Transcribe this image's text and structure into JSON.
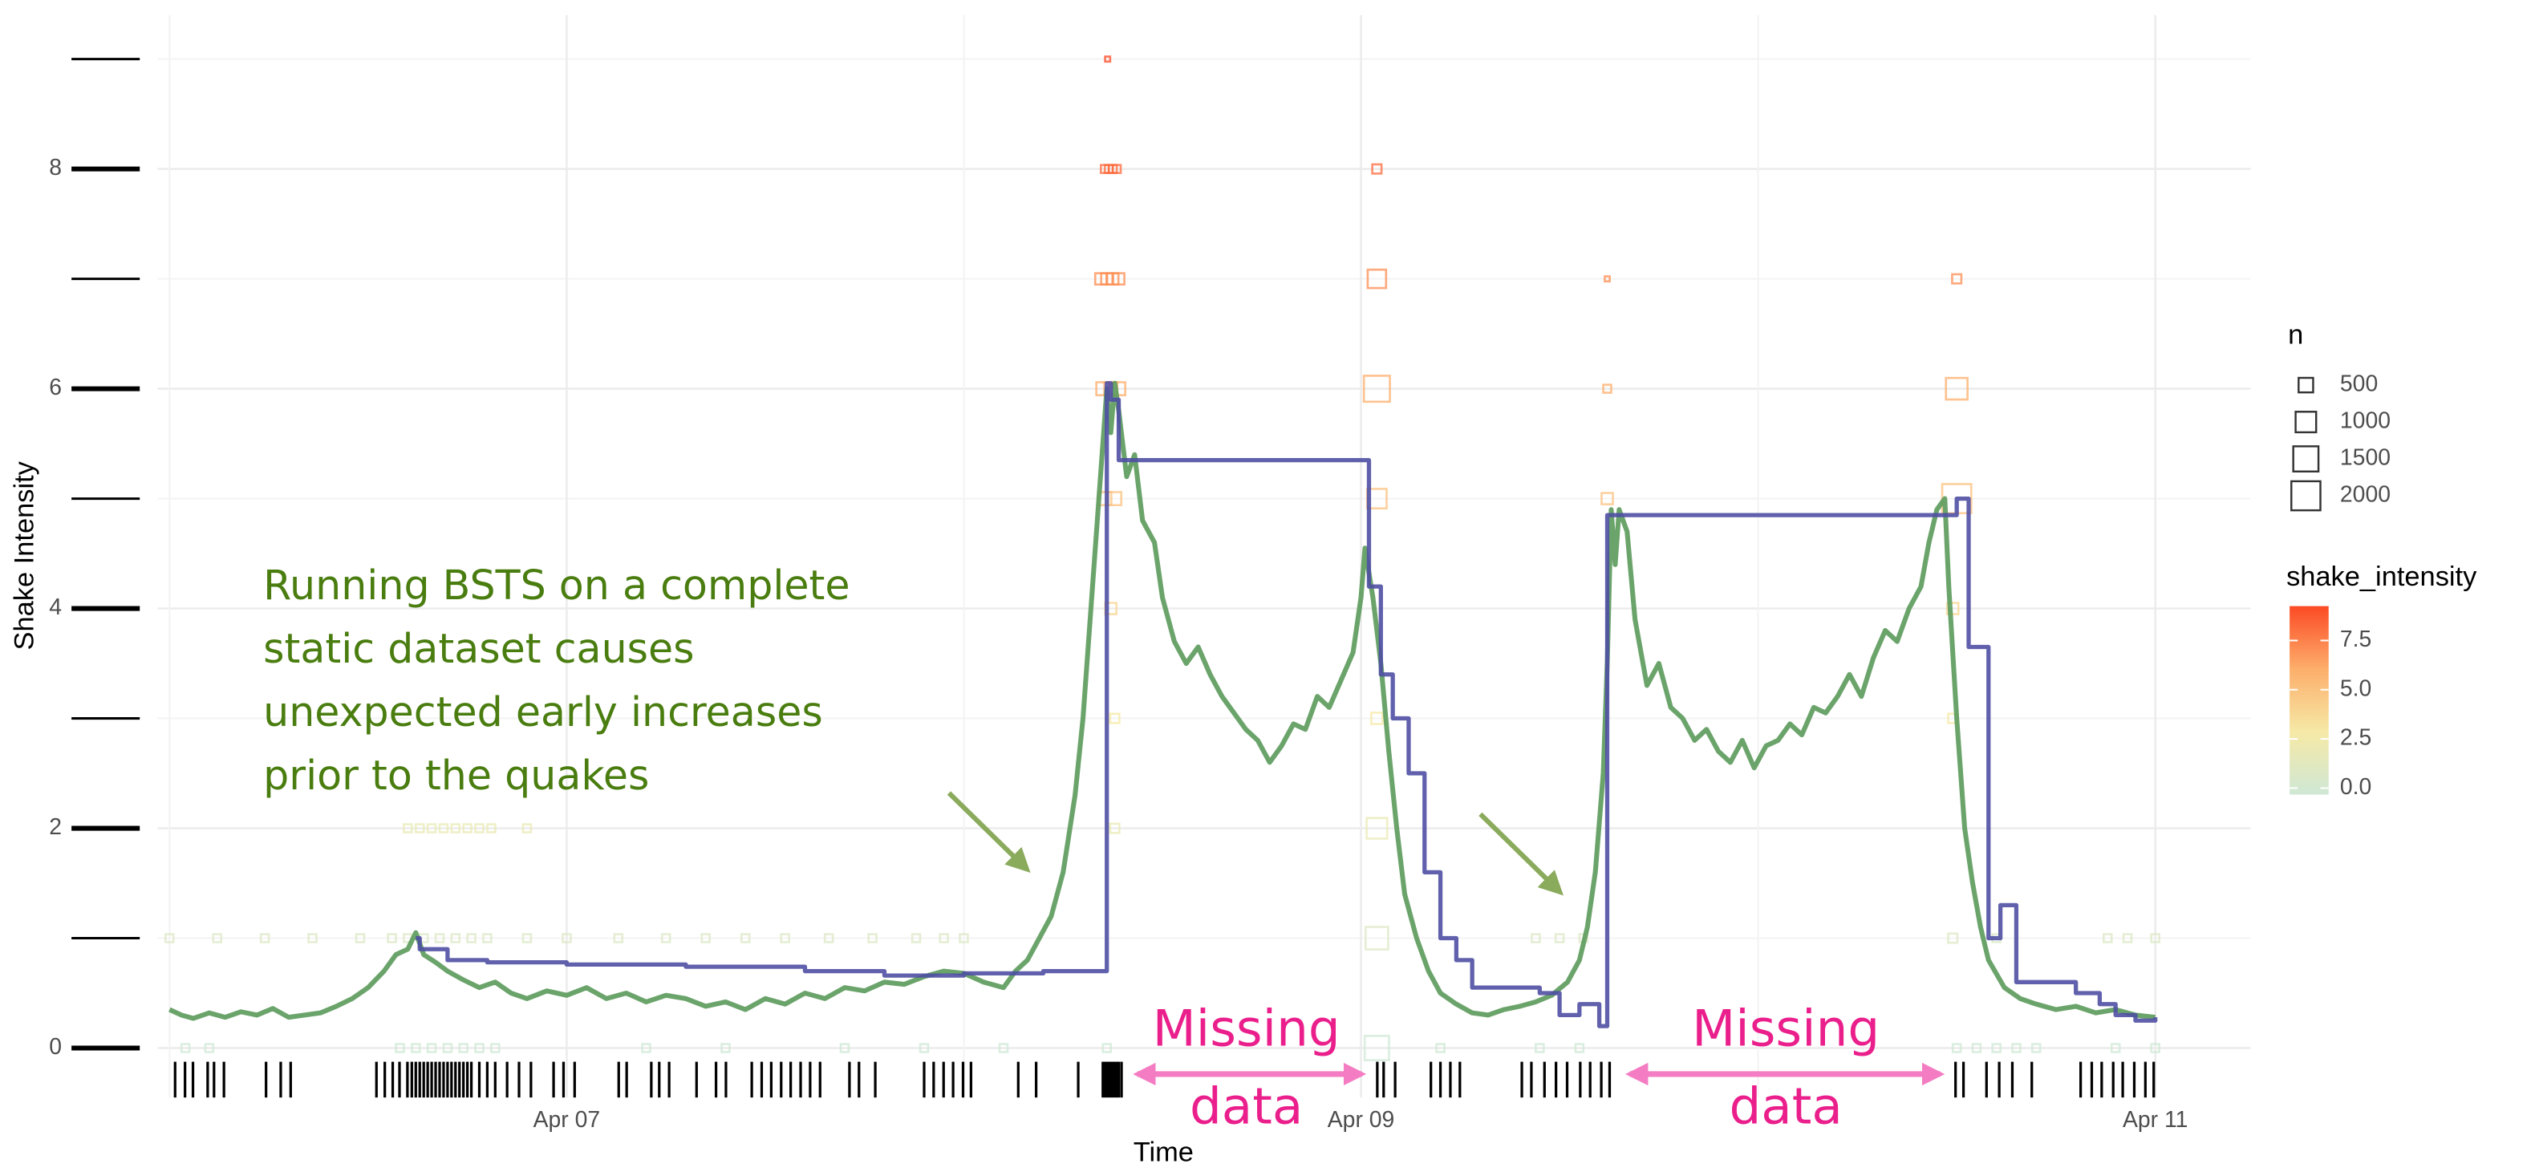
{
  "chart_data": {
    "type": "line",
    "y_label": "Shake Intensity",
    "x_label": "Time",
    "xlim": [
      5.97,
      11.24
    ],
    "xticks": [
      {
        "value": 7,
        "label": "Apr 07"
      },
      {
        "value": 9,
        "label": "Apr 09"
      },
      {
        "value": 11,
        "label": "Apr 11"
      }
    ],
    "xminor_ticks": [
      6,
      8,
      10
    ],
    "ylim": [
      -0.45,
      9.4
    ],
    "yticks": [
      0,
      2,
      4,
      6,
      8
    ],
    "yminor_ticks": [
      1,
      3,
      5,
      7,
      9
    ],
    "grid": true,
    "series": [
      {
        "color": "#5b9a5b",
        "step": false,
        "x": [
          6.0,
          6.03,
          6.06,
          6.1,
          6.14,
          6.18,
          6.22,
          6.26,
          6.3,
          6.34,
          6.38,
          6.42,
          6.46,
          6.5,
          6.54,
          6.57,
          6.6,
          6.62,
          6.64,
          6.67,
          6.7,
          6.74,
          6.78,
          6.82,
          6.86,
          6.9,
          6.95,
          7.0,
          7.05,
          7.1,
          7.15,
          7.2,
          7.25,
          7.3,
          7.35,
          7.4,
          7.45,
          7.5,
          7.55,
          7.6,
          7.65,
          7.7,
          7.75,
          7.8,
          7.85,
          7.9,
          7.95,
          8.0,
          8.05,
          8.1,
          8.13,
          8.16,
          8.19,
          8.22,
          8.25,
          8.28,
          8.3,
          8.32,
          8.34,
          8.36,
          8.37,
          8.38,
          8.39,
          8.41,
          8.43,
          8.45,
          8.48,
          8.5,
          8.53,
          8.56,
          8.59,
          8.62,
          8.65,
          8.68,
          8.71,
          8.74,
          8.77,
          8.8,
          8.83,
          8.86,
          8.89,
          8.92,
          8.95,
          8.98,
          9.0,
          9.01,
          9.03,
          9.05,
          9.07,
          9.09,
          9.11,
          9.14,
          9.17,
          9.2,
          9.24,
          9.28,
          9.32,
          9.36,
          9.4,
          9.44,
          9.48,
          9.52,
          9.55,
          9.57,
          9.59,
          9.61,
          9.62,
          9.63,
          9.64,
          9.65,
          9.67,
          9.69,
          9.72,
          9.75,
          9.78,
          9.81,
          9.84,
          9.87,
          9.9,
          9.93,
          9.96,
          9.99,
          10.02,
          10.05,
          10.08,
          10.11,
          10.14,
          10.17,
          10.2,
          10.23,
          10.26,
          10.29,
          10.32,
          10.35,
          10.38,
          10.41,
          10.43,
          10.45,
          10.47,
          10.48,
          10.5,
          10.52,
          10.54,
          10.56,
          10.58,
          10.62,
          10.66,
          10.7,
          10.75,
          10.8,
          10.85,
          10.9,
          10.95,
          11.0
        ],
        "values": [
          0.35,
          0.3,
          0.27,
          0.32,
          0.28,
          0.33,
          0.3,
          0.36,
          0.28,
          0.3,
          0.32,
          0.38,
          0.45,
          0.55,
          0.7,
          0.85,
          0.9,
          1.05,
          0.85,
          0.78,
          0.7,
          0.62,
          0.55,
          0.6,
          0.5,
          0.45,
          0.52,
          0.48,
          0.55,
          0.45,
          0.5,
          0.42,
          0.48,
          0.45,
          0.38,
          0.42,
          0.35,
          0.45,
          0.4,
          0.5,
          0.45,
          0.55,
          0.52,
          0.6,
          0.58,
          0.65,
          0.7,
          0.68,
          0.6,
          0.55,
          0.7,
          0.8,
          1.0,
          1.2,
          1.6,
          2.3,
          3.0,
          4.0,
          5.0,
          6.0,
          5.6,
          6.05,
          5.8,
          5.2,
          5.4,
          4.8,
          4.6,
          4.1,
          3.7,
          3.5,
          3.65,
          3.4,
          3.2,
          3.05,
          2.9,
          2.8,
          2.6,
          2.75,
          2.95,
          2.9,
          3.2,
          3.1,
          3.35,
          3.6,
          4.1,
          4.55,
          4.1,
          3.5,
          2.7,
          2.0,
          1.4,
          1.0,
          0.7,
          0.5,
          0.4,
          0.32,
          0.3,
          0.35,
          0.38,
          0.42,
          0.48,
          0.6,
          0.8,
          1.1,
          1.6,
          2.5,
          3.5,
          4.9,
          4.4,
          4.9,
          4.7,
          3.9,
          3.3,
          3.5,
          3.1,
          3.0,
          2.8,
          2.9,
          2.7,
          2.6,
          2.8,
          2.55,
          2.75,
          2.8,
          2.95,
          2.85,
          3.1,
          3.05,
          3.2,
          3.4,
          3.2,
          3.55,
          3.8,
          3.7,
          4.0,
          4.2,
          4.6,
          4.9,
          5.0,
          4.2,
          3.0,
          2.0,
          1.5,
          1.1,
          0.8,
          0.55,
          0.45,
          0.4,
          0.35,
          0.38,
          0.32,
          0.35,
          0.3,
          0.28
        ]
      },
      {
        "color": "#4f4fa3",
        "step": true,
        "x": [
          6.62,
          6.63,
          6.7,
          6.8,
          7.0,
          7.3,
          7.6,
          7.8,
          8.0,
          8.2,
          8.36,
          8.37,
          8.39,
          9.0,
          9.02,
          9.05,
          9.08,
          9.12,
          9.16,
          9.2,
          9.24,
          9.28,
          9.35,
          9.45,
          9.5,
          9.55,
          9.6,
          9.62,
          10.48,
          10.5,
          10.53,
          10.58,
          10.61,
          10.65,
          10.8,
          10.86,
          10.9,
          10.95,
          11.0
        ],
        "values": [
          1.0,
          0.9,
          0.8,
          0.78,
          0.76,
          0.74,
          0.7,
          0.66,
          0.68,
          0.7,
          6.05,
          5.9,
          5.35,
          5.35,
          4.2,
          3.4,
          3.0,
          2.5,
          1.6,
          1.0,
          0.8,
          0.55,
          0.55,
          0.5,
          0.3,
          0.4,
          0.2,
          4.85,
          4.85,
          5.0,
          3.65,
          1.0,
          1.3,
          0.6,
          0.5,
          0.4,
          0.3,
          0.25,
          0.28
        ]
      }
    ],
    "points": [
      {
        "x": 8.362,
        "y": 9,
        "n": 60
      },
      {
        "x": 8.355,
        "y": 8,
        "n": 150
      },
      {
        "x": 8.365,
        "y": 8,
        "n": 150
      },
      {
        "x": 8.375,
        "y": 8,
        "n": 150
      },
      {
        "x": 8.385,
        "y": 8,
        "n": 150
      },
      {
        "x": 9.04,
        "y": 8,
        "n": 200
      },
      {
        "x": 8.345,
        "y": 7,
        "n": 300
      },
      {
        "x": 8.36,
        "y": 7,
        "n": 300
      },
      {
        "x": 8.375,
        "y": 7,
        "n": 300
      },
      {
        "x": 8.39,
        "y": 7,
        "n": 300
      },
      {
        "x": 9.04,
        "y": 7,
        "n": 800
      },
      {
        "x": 9.62,
        "y": 7,
        "n": 60
      },
      {
        "x": 10.5,
        "y": 7,
        "n": 200
      },
      {
        "x": 8.35,
        "y": 6,
        "n": 400
      },
      {
        "x": 8.37,
        "y": 6,
        "n": 400
      },
      {
        "x": 8.39,
        "y": 6,
        "n": 400
      },
      {
        "x": 9.04,
        "y": 6,
        "n": 1600
      },
      {
        "x": 9.62,
        "y": 6,
        "n": 150
      },
      {
        "x": 10.5,
        "y": 6,
        "n": 1100
      },
      {
        "x": 8.355,
        "y": 5,
        "n": 400
      },
      {
        "x": 8.38,
        "y": 5,
        "n": 400
      },
      {
        "x": 9.04,
        "y": 5,
        "n": 900
      },
      {
        "x": 9.62,
        "y": 5,
        "n": 300
      },
      {
        "x": 10.5,
        "y": 5,
        "n": 2000
      },
      {
        "x": 8.37,
        "y": 4,
        "n": 300
      },
      {
        "x": 10.49,
        "y": 4,
        "n": 300
      },
      {
        "x": 8.38,
        "y": 3,
        "n": 200
      },
      {
        "x": 9.04,
        "y": 3,
        "n": 300
      },
      {
        "x": 10.49,
        "y": 3,
        "n": 200
      },
      {
        "x": 6.6,
        "y": 2,
        "n": 150
      },
      {
        "x": 6.63,
        "y": 2,
        "n": 150
      },
      {
        "x": 6.66,
        "y": 2,
        "n": 150
      },
      {
        "x": 6.69,
        "y": 2,
        "n": 150
      },
      {
        "x": 6.72,
        "y": 2,
        "n": 150
      },
      {
        "x": 6.75,
        "y": 2,
        "n": 150
      },
      {
        "x": 6.78,
        "y": 2,
        "n": 150
      },
      {
        "x": 6.81,
        "y": 2,
        "n": 150
      },
      {
        "x": 6.9,
        "y": 2,
        "n": 150
      },
      {
        "x": 8.38,
        "y": 2,
        "n": 200
      },
      {
        "x": 9.04,
        "y": 2,
        "n": 1000
      },
      {
        "x": 6.0,
        "y": 1,
        "n": 150
      },
      {
        "x": 6.12,
        "y": 1,
        "n": 150
      },
      {
        "x": 6.24,
        "y": 1,
        "n": 150
      },
      {
        "x": 6.36,
        "y": 1,
        "n": 150
      },
      {
        "x": 6.48,
        "y": 1,
        "n": 150
      },
      {
        "x": 6.56,
        "y": 1,
        "n": 150
      },
      {
        "x": 6.6,
        "y": 1,
        "n": 150
      },
      {
        "x": 6.64,
        "y": 1,
        "n": 150
      },
      {
        "x": 6.68,
        "y": 1,
        "n": 150
      },
      {
        "x": 6.72,
        "y": 1,
        "n": 150
      },
      {
        "x": 6.76,
        "y": 1,
        "n": 150
      },
      {
        "x": 6.8,
        "y": 1,
        "n": 150
      },
      {
        "x": 6.9,
        "y": 1,
        "n": 150
      },
      {
        "x": 7.0,
        "y": 1,
        "n": 150
      },
      {
        "x": 7.13,
        "y": 1,
        "n": 150
      },
      {
        "x": 7.25,
        "y": 1,
        "n": 150
      },
      {
        "x": 7.35,
        "y": 1,
        "n": 150
      },
      {
        "x": 7.45,
        "y": 1,
        "n": 150
      },
      {
        "x": 7.55,
        "y": 1,
        "n": 150
      },
      {
        "x": 7.66,
        "y": 1,
        "n": 150
      },
      {
        "x": 7.77,
        "y": 1,
        "n": 150
      },
      {
        "x": 7.88,
        "y": 1,
        "n": 150
      },
      {
        "x": 7.95,
        "y": 1,
        "n": 150
      },
      {
        "x": 8.0,
        "y": 1,
        "n": 150
      },
      {
        "x": 9.04,
        "y": 1,
        "n": 1200
      },
      {
        "x": 9.44,
        "y": 1,
        "n": 150
      },
      {
        "x": 9.5,
        "y": 1,
        "n": 150
      },
      {
        "x": 9.56,
        "y": 1,
        "n": 150
      },
      {
        "x": 10.49,
        "y": 1,
        "n": 200
      },
      {
        "x": 10.6,
        "y": 1,
        "n": 150
      },
      {
        "x": 10.88,
        "y": 1,
        "n": 150
      },
      {
        "x": 10.93,
        "y": 1,
        "n": 150
      },
      {
        "x": 11.0,
        "y": 1,
        "n": 150
      },
      {
        "x": 6.04,
        "y": 0,
        "n": 150
      },
      {
        "x": 6.1,
        "y": 0,
        "n": 150
      },
      {
        "x": 6.58,
        "y": 0,
        "n": 150
      },
      {
        "x": 6.62,
        "y": 0,
        "n": 150
      },
      {
        "x": 6.66,
        "y": 0,
        "n": 150
      },
      {
        "x": 6.7,
        "y": 0,
        "n": 150
      },
      {
        "x": 6.74,
        "y": 0,
        "n": 150
      },
      {
        "x": 6.78,
        "y": 0,
        "n": 150
      },
      {
        "x": 6.82,
        "y": 0,
        "n": 150
      },
      {
        "x": 7.2,
        "y": 0,
        "n": 150
      },
      {
        "x": 7.4,
        "y": 0,
        "n": 150
      },
      {
        "x": 7.7,
        "y": 0,
        "n": 150
      },
      {
        "x": 7.9,
        "y": 0,
        "n": 150
      },
      {
        "x": 8.1,
        "y": 0,
        "n": 150
      },
      {
        "x": 8.36,
        "y": 0,
        "n": 150
      },
      {
        "x": 9.04,
        "y": 0,
        "n": 1400
      },
      {
        "x": 9.2,
        "y": 0,
        "n": 150
      },
      {
        "x": 9.45,
        "y": 0,
        "n": 150
      },
      {
        "x": 9.55,
        "y": 0,
        "n": 150
      },
      {
        "x": 10.5,
        "y": 0,
        "n": 150
      },
      {
        "x": 10.55,
        "y": 0,
        "n": 150
      },
      {
        "x": 10.6,
        "y": 0,
        "n": 150
      },
      {
        "x": 10.65,
        "y": 0,
        "n": 150
      },
      {
        "x": 10.7,
        "y": 0,
        "n": 150
      },
      {
        "x": 10.9,
        "y": 0,
        "n": 150
      },
      {
        "x": 11.0,
        "y": 0,
        "n": 150
      }
    ],
    "rug_x": [
      6.014,
      6.039,
      6.059,
      6.096,
      6.112,
      6.137,
      6.243,
      6.28,
      6.305,
      6.521,
      6.542,
      6.562,
      6.579,
      6.599,
      6.61,
      6.62,
      6.63,
      6.64,
      6.65,
      6.66,
      6.67,
      6.68,
      6.69,
      6.7,
      6.71,
      6.72,
      6.73,
      6.74,
      6.75,
      6.76,
      6.78,
      6.8,
      6.82,
      6.85,
      6.88,
      6.91,
      6.967,
      6.992,
      7.02,
      7.131,
      7.151,
      7.213,
      7.233,
      7.258,
      7.327,
      7.376,
      7.401,
      7.466,
      7.491,
      7.515,
      7.54,
      7.564,
      7.589,
      7.613,
      7.638,
      7.712,
      7.736,
      7.777,
      7.9,
      7.924,
      7.949,
      7.973,
      7.998,
      8.018,
      8.137,
      8.182,
      8.288,
      8.35,
      8.355,
      8.36,
      8.365,
      8.37,
      8.375,
      8.38,
      8.385,
      8.39,
      8.397,
      9.041,
      9.057,
      9.086,
      9.176,
      9.2,
      9.225,
      9.249,
      9.405,
      9.429,
      9.462,
      9.491,
      9.519,
      9.552,
      9.577,
      9.605,
      9.626,
      10.497,
      10.517,
      10.575,
      10.607,
      10.64,
      10.689,
      10.812,
      10.84,
      10.865,
      10.894,
      10.918,
      10.947,
      10.975,
      10.996
    ],
    "annotation": [
      "Running BSTS on a complete",
      "static dataset causes",
      "unexpected early increases",
      "prior to the quakes"
    ],
    "missing_data_labels": [
      [
        "Missing",
        "data"
      ],
      [
        "Missing",
        "data"
      ]
    ],
    "size_legend": {
      "title": "n",
      "values": [
        500,
        1000,
        1500,
        2000
      ]
    },
    "color_legend": {
      "title": "shake_intensity",
      "lim": [
        0,
        9
      ],
      "ticks": [
        {
          "value": 0,
          "label": "0.0"
        },
        2.5,
        {
          "value": 5,
          "label": "5.0"
        },
        7.5
      ],
      "colors": [
        "#cfe8d5",
        "#f6e9a6",
        "#fdae6b",
        "#fc4a24"
      ]
    }
  }
}
